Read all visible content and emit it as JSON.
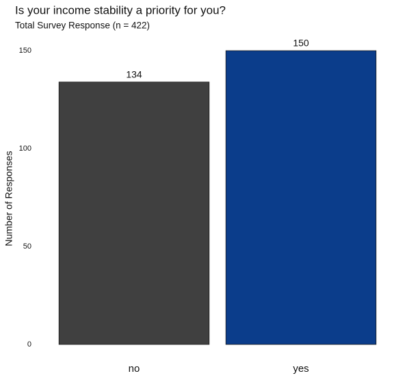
{
  "chart_data": {
    "type": "bar",
    "title": "Is your income stability a priority for you?",
    "subtitle": "Total Survey Response (n = 422)",
    "y_label": "Number of Responses",
    "categories": [
      "no",
      "yes"
    ],
    "values": [
      134,
      150
    ],
    "colors": [
      "#404040",
      "#0b3d8b"
    ],
    "ylim": [
      0,
      150
    ],
    "yticks": [
      0,
      50,
      100,
      150
    ],
    "grid": false
  }
}
